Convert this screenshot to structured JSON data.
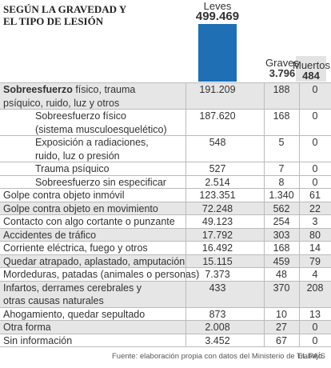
{
  "header": {
    "title": [
      "SEGÚN LA GRAVEDAD Y",
      "EL TIPO DE LESIÓN"
    ],
    "columns": [
      {
        "name": "Leves",
        "total": "499.469"
      },
      {
        "name": "Graves",
        "total": "3.796"
      },
      {
        "name": "Muertos",
        "total": "484"
      }
    ]
  },
  "table": {
    "rows": [
      {
        "label_bold": "Sobreesfuerzo",
        "label": [
          "físico, trauma",
          "psíquico, ruido, luz  y otros"
        ],
        "values": [
          "191.209",
          "188",
          "0"
        ]
      },
      {
        "sub": true,
        "label": [
          "Sobreesfuerzo  físico",
          "(sistema musculoesquelético)"
        ],
        "values": [
          "187.620",
          "168",
          "0"
        ]
      },
      {
        "sub": true,
        "label": [
          "Exposición a radiaciones,",
          "ruido, luz o presión"
        ],
        "values": [
          "548",
          "5",
          "0"
        ]
      },
      {
        "sub": true,
        "label": [
          "Trauma psíquico"
        ],
        "values": [
          "527",
          "7",
          "0"
        ]
      },
      {
        "sub": true,
        "label": [
          "Sobreesfuerzo sin especificar"
        ],
        "values": [
          "2.514",
          "8",
          "0"
        ]
      },
      {
        "label": [
          "Golpe contra objeto inmóvil"
        ],
        "values": [
          "123.351",
          "1.340",
          "61"
        ]
      },
      {
        "label": [
          "Golpe contra  objeto en movimiento"
        ],
        "values": [
          "72.248",
          "562",
          "22"
        ]
      },
      {
        "label": [
          "Contacto con algo cortante o punzante"
        ],
        "values": [
          "49.123",
          "254",
          "3"
        ]
      },
      {
        "label": [
          "Accidentes de tráfico"
        ],
        "values": [
          "17.792",
          "303",
          "80"
        ]
      },
      {
        "label": [
          "Corriente eléctrica, fuego y otros"
        ],
        "values": [
          "16.492",
          "168",
          "14"
        ]
      },
      {
        "label": [
          "Quedar atrapado, aplastado,  amputación"
        ],
        "values": [
          "15.115",
          "459",
          "79"
        ]
      },
      {
        "label": [
          "Mordeduras, patadas (animales o personas)"
        ],
        "values": [
          "7.373",
          "48",
          "4"
        ]
      },
      {
        "label": [
          "Infartos, derrames cerebrales y",
          "otras causas naturales"
        ],
        "values": [
          "433",
          "370",
          "208"
        ]
      },
      {
        "label": [
          "Ahogamiento, quedar sepultado"
        ],
        "values": [
          "873",
          "10",
          "13"
        ]
      },
      {
        "label": [
          "Otra forma"
        ],
        "values": [
          "2.008",
          "27",
          "0"
        ]
      },
      {
        "label": [
          "Sin información"
        ],
        "values": [
          "3.452",
          "67",
          "0"
        ]
      }
    ]
  },
  "footer": {
    "source": "Fuente: elaboración propia con datos del Ministerio de Trabajo.",
    "brand": "EL PAÍS"
  }
}
